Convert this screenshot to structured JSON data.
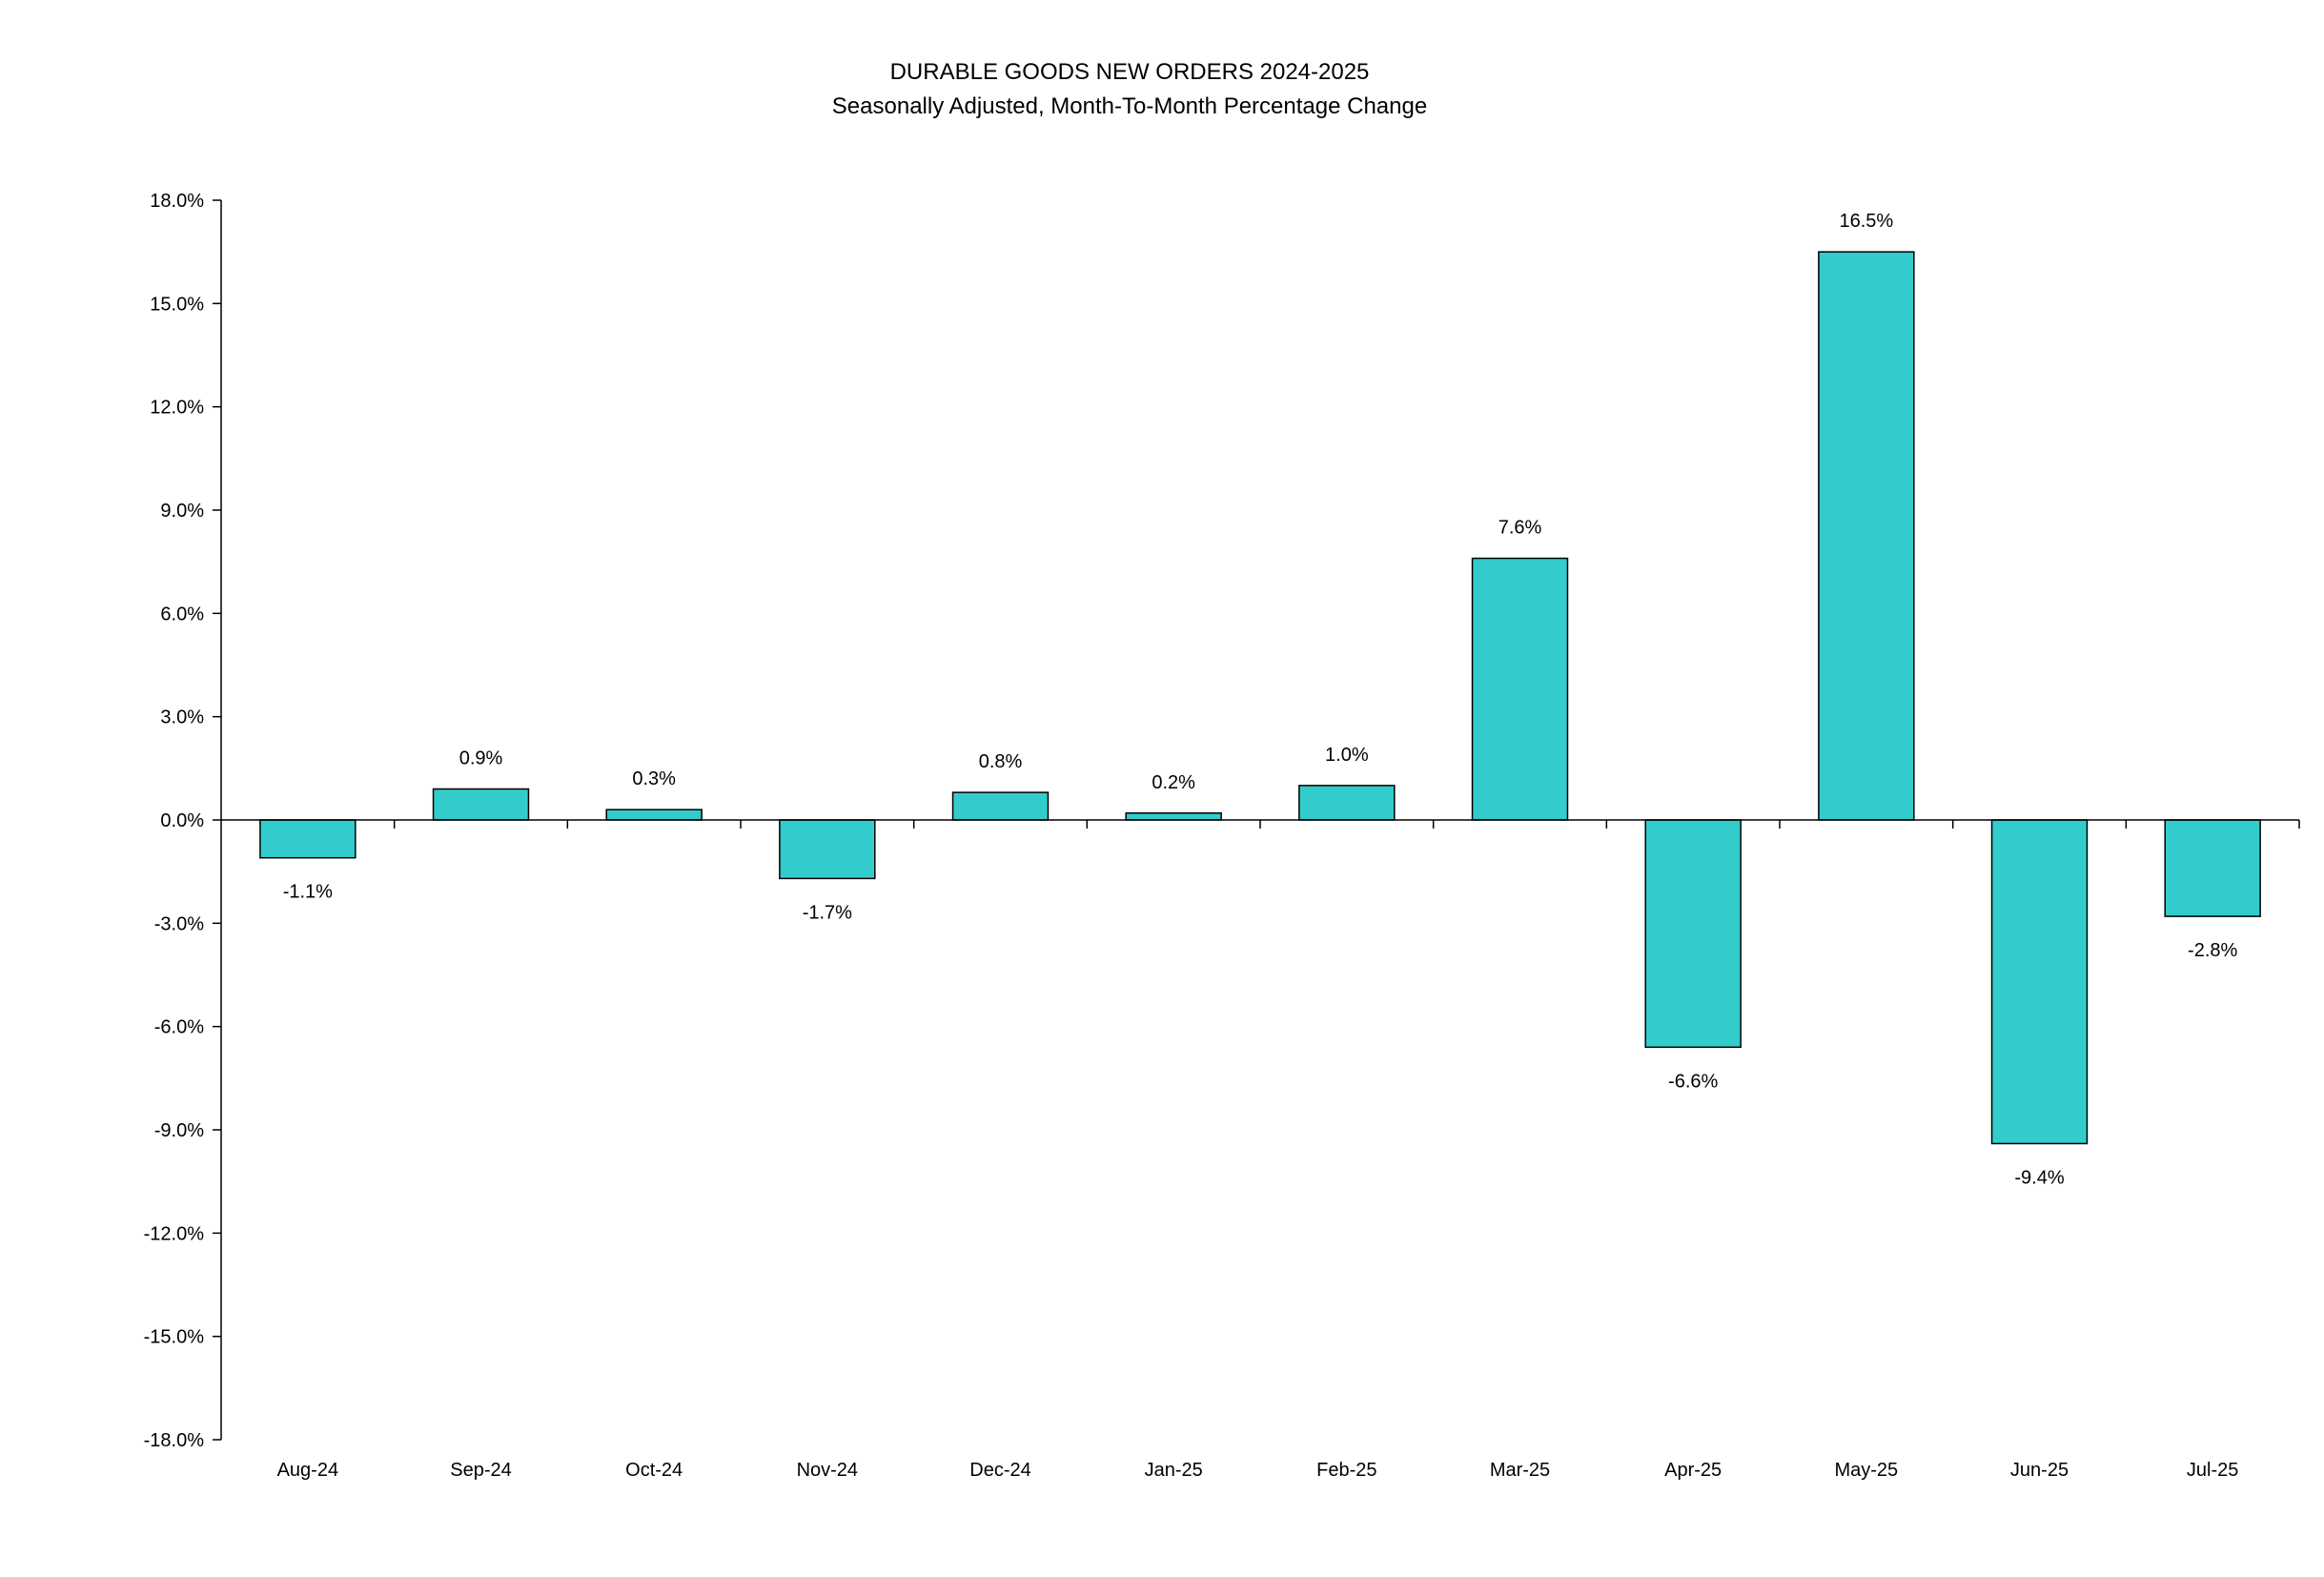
{
  "chart_data": {
    "type": "bar",
    "title": "DURABLE GOODS NEW ORDERS 2024-2025",
    "subtitle": "Seasonally Adjusted,  Month-To-Month Percentage Change",
    "xlabel": "",
    "ylabel": "",
    "categories": [
      "Aug-24",
      "Sep-24",
      "Oct-24",
      "Nov-24",
      "Dec-24",
      "Jan-25",
      "Feb-25",
      "Mar-25",
      "Apr-25",
      "May-25",
      "Jun-25",
      "Jul-25"
    ],
    "values": [
      -1.1,
      0.9,
      0.3,
      -1.7,
      0.8,
      0.2,
      1.0,
      7.6,
      -6.6,
      16.5,
      -9.4,
      -2.8
    ],
    "data_labels": [
      "-1.1%",
      "0.9%",
      "0.3%",
      "-1.7%",
      "0.8%",
      "0.2%",
      "1.0%",
      "7.6%",
      "-6.6%",
      "16.5%",
      "-9.4%",
      "-2.8%"
    ],
    "ylim": [
      -18,
      18
    ],
    "y_ticks": [
      18,
      15,
      12,
      9,
      6,
      3,
      0,
      -3,
      -6,
      -9,
      -12,
      -15,
      -18
    ],
    "y_tick_labels": [
      "18.0%",
      "15.0%",
      "12.0%",
      "9.0%",
      "6.0%",
      "3.0%",
      "0.0%",
      "-3.0%",
      "-6.0%",
      "-9.0%",
      "-12.0%",
      "-15.0%",
      "-18.0%"
    ],
    "grid": false,
    "legend": "none",
    "colors": {
      "bar_fill": "#33CCCC",
      "bar_stroke": "#000000",
      "axis": "#000000"
    }
  }
}
